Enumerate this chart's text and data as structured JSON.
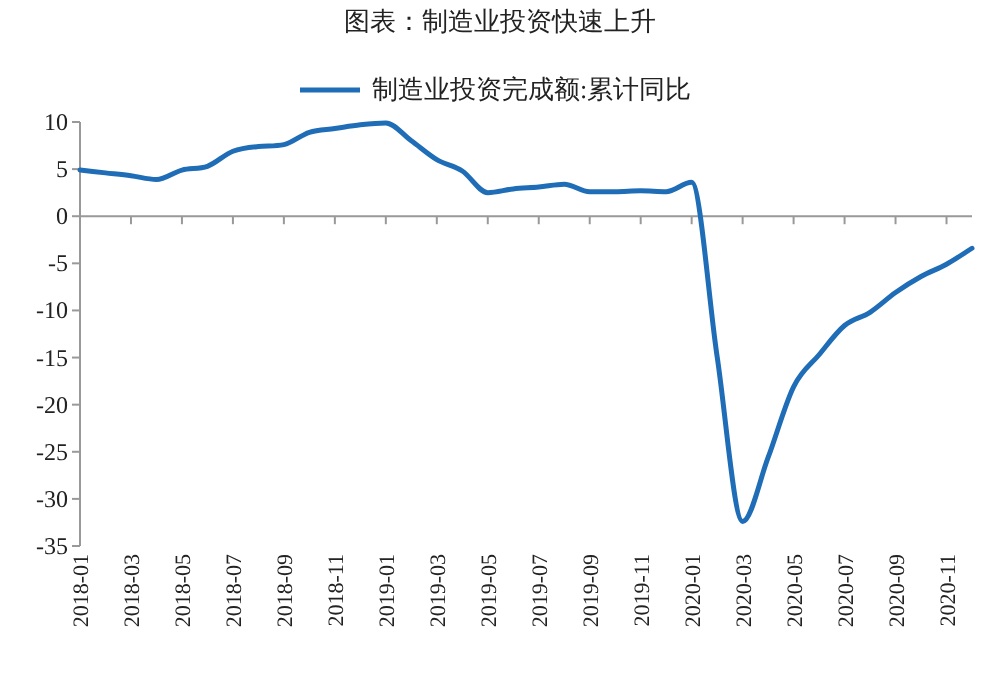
{
  "chart_data": {
    "type": "line",
    "title": "图表：制造业投资快速上升",
    "categories": [
      "2018-01",
      null,
      "2018-03",
      null,
      "2018-05",
      null,
      "2018-07",
      null,
      "2018-09",
      null,
      "2018-11",
      null,
      "2019-01",
      null,
      "2019-03",
      null,
      "2019-05",
      null,
      "2019-07",
      null,
      "2019-09",
      null,
      "2019-11",
      null,
      "2020-01",
      null,
      "2020-03",
      null,
      "2020-05",
      null,
      "2020-07",
      null,
      "2020-09",
      null,
      "2020-11",
      null
    ],
    "series": [
      {
        "name": "制造业投资完成额:累计同比",
        "color": "#1f6db6",
        "values": [
          4.9,
          4.6,
          4.3,
          3.9,
          4.9,
          5.3,
          6.9,
          7.4,
          7.6,
          8.9,
          9.3,
          9.7,
          9.9,
          8.0,
          6.0,
          4.8,
          2.5,
          2.9,
          3.1,
          3.4,
          2.6,
          2.6,
          2.7,
          2.6,
          3.6,
          -14.9,
          -32.4,
          -25.6,
          -18.1,
          -14.7,
          -11.6,
          -10.2,
          -8.1,
          -6.4,
          -5.1,
          -3.4
        ]
      }
    ],
    "ylim": [
      -35,
      10
    ],
    "yticks": [
      -35,
      -30,
      -25,
      -20,
      -15,
      -10,
      -5,
      0,
      5,
      10
    ],
    "legend": "top",
    "marker": "none",
    "line_style": "solid"
  }
}
